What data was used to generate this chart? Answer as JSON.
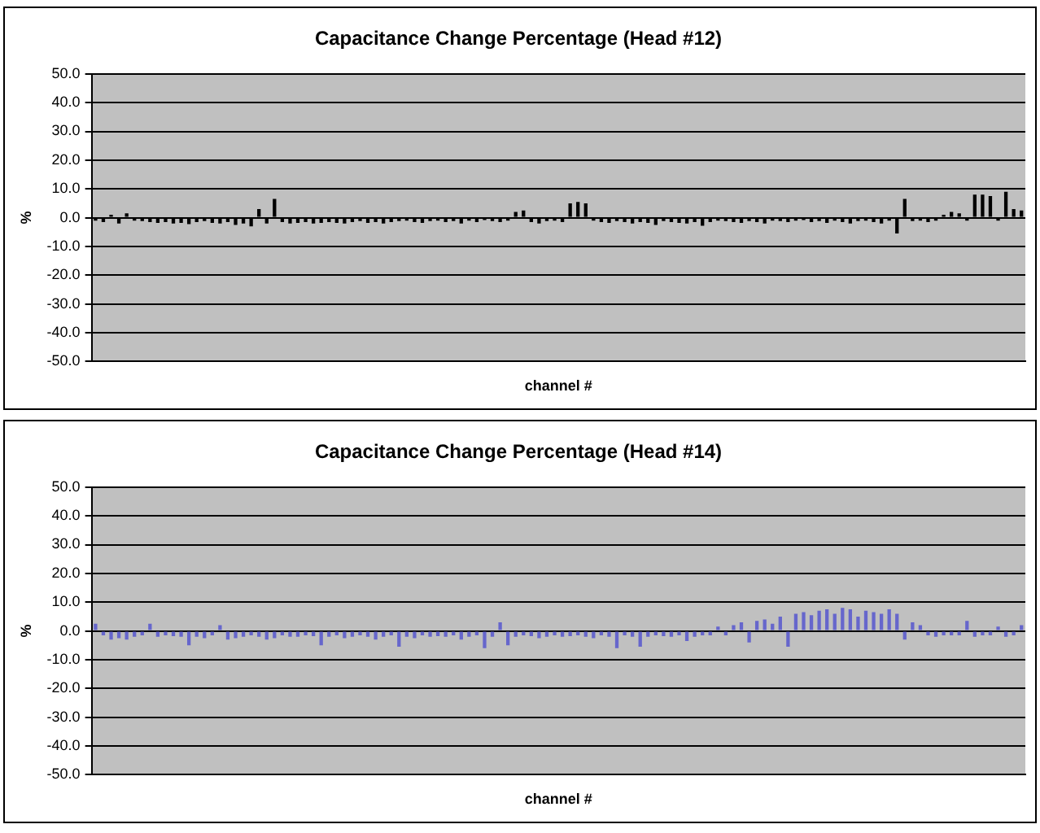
{
  "chart_data": [
    {
      "type": "bar",
      "title": "Capacitance Change Percentage (Head #12)",
      "xlabel": "channel #",
      "ylabel": "%",
      "categories": [
        null,
        null,
        null,
        null,
        null,
        null,
        null,
        null,
        null,
        null,
        null,
        null,
        null,
        null,
        null,
        null,
        null,
        null,
        null,
        null,
        null,
        null,
        null,
        null,
        null,
        null,
        null,
        null,
        null,
        null,
        null,
        null,
        null,
        null,
        null,
        null,
        null,
        null,
        null,
        null,
        null,
        null,
        null,
        null,
        null,
        null,
        null,
        null,
        null,
        null,
        null,
        null,
        null,
        null,
        null,
        null,
        null,
        null,
        null,
        null,
        null,
        null,
        null,
        null,
        null,
        null,
        null,
        null,
        null,
        null,
        null,
        null,
        null,
        null,
        null,
        null,
        null,
        null,
        null,
        null,
        null,
        null,
        null,
        null,
        null,
        null,
        null,
        null,
        null,
        null,
        null,
        null,
        null,
        null,
        null,
        null,
        null,
        null,
        null,
        null,
        null,
        null,
        null,
        null,
        null,
        null,
        null,
        null,
        null,
        null,
        null,
        null,
        null,
        null,
        null,
        null,
        null,
        null,
        null,
        null
      ],
      "values": [
        -1.0,
        -1.5,
        1.0,
        -2.0,
        1.5,
        -1.0,
        -1.2,
        -1.5,
        -1.8,
        -1.5,
        -2.0,
        -1.8,
        -2.2,
        -1.5,
        -1.2,
        -1.8,
        -2.0,
        -1.5,
        -2.5,
        -2.0,
        -3.0,
        3.0,
        -2.0,
        6.5,
        -1.5,
        -2.0,
        -1.8,
        -1.5,
        -2.0,
        -1.8,
        -1.5,
        -1.8,
        -2.0,
        -1.5,
        -1.2,
        -1.8,
        -1.5,
        -2.0,
        -1.5,
        -1.2,
        -1.0,
        -1.5,
        -1.8,
        -1.2,
        -1.0,
        -1.5,
        -1.2,
        -2.0,
        -1.0,
        -1.5,
        -0.8,
        -1.2,
        -1.5,
        -1.0,
        2.0,
        2.5,
        -1.5,
        -2.0,
        -1.2,
        -1.0,
        -1.5,
        5.0,
        5.5,
        5.0,
        -1.0,
        -1.5,
        -1.8,
        -1.2,
        -1.5,
        -2.0,
        -1.5,
        -1.8,
        -2.5,
        -1.2,
        -1.5,
        -1.8,
        -2.0,
        -1.5,
        -2.8,
        -1.5,
        -1.0,
        -1.2,
        -1.5,
        -1.8,
        -1.2,
        -1.5,
        -2.0,
        -1.0,
        -1.2,
        -1.5,
        -1.0,
        -0.8,
        -1.5,
        -1.2,
        -1.8,
        -1.0,
        -1.5,
        -2.0,
        -1.2,
        -1.0,
        -1.5,
        -2.0,
        -1.0,
        -5.5,
        6.5,
        -1.2,
        -1.0,
        -1.5,
        -1.0,
        1.0,
        2.0,
        1.5,
        -1.0,
        8.0,
        8.0,
        7.5,
        -1.0,
        9.0,
        3.0,
        2.5
      ],
      "color": "#000000",
      "ylim": [
        -50,
        50
      ],
      "yticks": [
        {
          "value": 50,
          "label": "50.0"
        },
        {
          "value": 40,
          "label": "40.0"
        },
        {
          "value": 30,
          "label": "30.0"
        },
        {
          "value": 20,
          "label": "20.0"
        },
        {
          "value": 10,
          "label": "10.0"
        },
        {
          "value": 0,
          "label": "0.0"
        },
        {
          "value": -10,
          "label": "-10.0"
        },
        {
          "value": -20,
          "label": "-20.0"
        },
        {
          "value": -30,
          "label": "-30.0"
        },
        {
          "value": -40,
          "label": "-40.0"
        },
        {
          "value": -50,
          "label": "-50.0"
        }
      ],
      "grid": "y",
      "tick_labels": "y"
    },
    {
      "type": "bar",
      "title": "Capacitance Change Percentage (Head #14)",
      "xlabel": "channel #",
      "ylabel": "%",
      "categories": [
        null,
        null,
        null,
        null,
        null,
        null,
        null,
        null,
        null,
        null,
        null,
        null,
        null,
        null,
        null,
        null,
        null,
        null,
        null,
        null,
        null,
        null,
        null,
        null,
        null,
        null,
        null,
        null,
        null,
        null,
        null,
        null,
        null,
        null,
        null,
        null,
        null,
        null,
        null,
        null,
        null,
        null,
        null,
        null,
        null,
        null,
        null,
        null,
        null,
        null,
        null,
        null,
        null,
        null,
        null,
        null,
        null,
        null,
        null,
        null,
        null,
        null,
        null,
        null,
        null,
        null,
        null,
        null,
        null,
        null,
        null,
        null,
        null,
        null,
        null,
        null,
        null,
        null,
        null,
        null,
        null,
        null,
        null,
        null,
        null,
        null,
        null,
        null,
        null,
        null,
        null,
        null,
        null,
        null,
        null,
        null,
        null,
        null,
        null,
        null,
        null,
        null,
        null,
        null,
        null,
        null,
        null,
        null,
        null,
        null,
        null,
        null,
        null,
        null,
        null,
        null,
        null,
        null,
        null,
        null
      ],
      "values": [
        2.5,
        -1.5,
        -3.0,
        -2.5,
        -3.0,
        -2.0,
        -1.5,
        2.5,
        -2.0,
        -1.5,
        -1.8,
        -2.0,
        -5.0,
        -2.0,
        -2.5,
        -1.5,
        2.0,
        -3.0,
        -2.5,
        -2.0,
        -1.5,
        -2.0,
        -3.0,
        -2.5,
        -1.5,
        -2.0,
        -2.0,
        -1.5,
        -1.8,
        -5.0,
        -2.0,
        -1.5,
        -2.5,
        -2.0,
        -1.5,
        -2.0,
        -3.0,
        -2.0,
        -1.5,
        -5.5,
        -2.0,
        -2.5,
        -1.5,
        -2.0,
        -1.8,
        -2.0,
        -1.5,
        -3.0,
        -2.0,
        -1.5,
        -6.0,
        -2.0,
        3.0,
        -5.0,
        -2.0,
        -1.5,
        -1.8,
        -2.5,
        -2.0,
        -1.5,
        -2.0,
        -1.8,
        -1.5,
        -2.0,
        -2.5,
        -1.5,
        -2.0,
        -6.0,
        -1.5,
        -2.0,
        -5.5,
        -2.0,
        -1.5,
        -1.8,
        -2.0,
        -1.5,
        -3.5,
        -2.0,
        -1.5,
        -1.5,
        1.5,
        -1.5,
        2.0,
        3.0,
        -4.0,
        3.5,
        4.0,
        2.5,
        5.0,
        -5.5,
        6.0,
        6.5,
        5.5,
        7.0,
        7.5,
        6.0,
        8.0,
        7.5,
        5.0,
        7.0,
        6.5,
        6.0,
        7.5,
        6.0,
        -3.0,
        3.0,
        2.0,
        -1.5,
        -2.0,
        -1.5,
        -1.5,
        -1.5,
        3.5,
        -2.0,
        -1.5,
        -1.5,
        1.5,
        -2.0,
        -1.5,
        2.0
      ],
      "color": "#6666cc",
      "ylim": [
        -50,
        50
      ],
      "yticks": [
        {
          "value": 50,
          "label": "50.0"
        },
        {
          "value": 40,
          "label": "40.0"
        },
        {
          "value": 30,
          "label": "30.0"
        },
        {
          "value": 20,
          "label": "20.0"
        },
        {
          "value": 10,
          "label": "10.0"
        },
        {
          "value": 0,
          "label": "0.0"
        },
        {
          "value": -10,
          "label": "-10.0"
        },
        {
          "value": -20,
          "label": "-20.0"
        },
        {
          "value": -30,
          "label": "-30.0"
        },
        {
          "value": -40,
          "label": "-40.0"
        },
        {
          "value": -50,
          "label": "-50.0"
        }
      ],
      "grid": "y",
      "tick_labels": "y"
    }
  ]
}
